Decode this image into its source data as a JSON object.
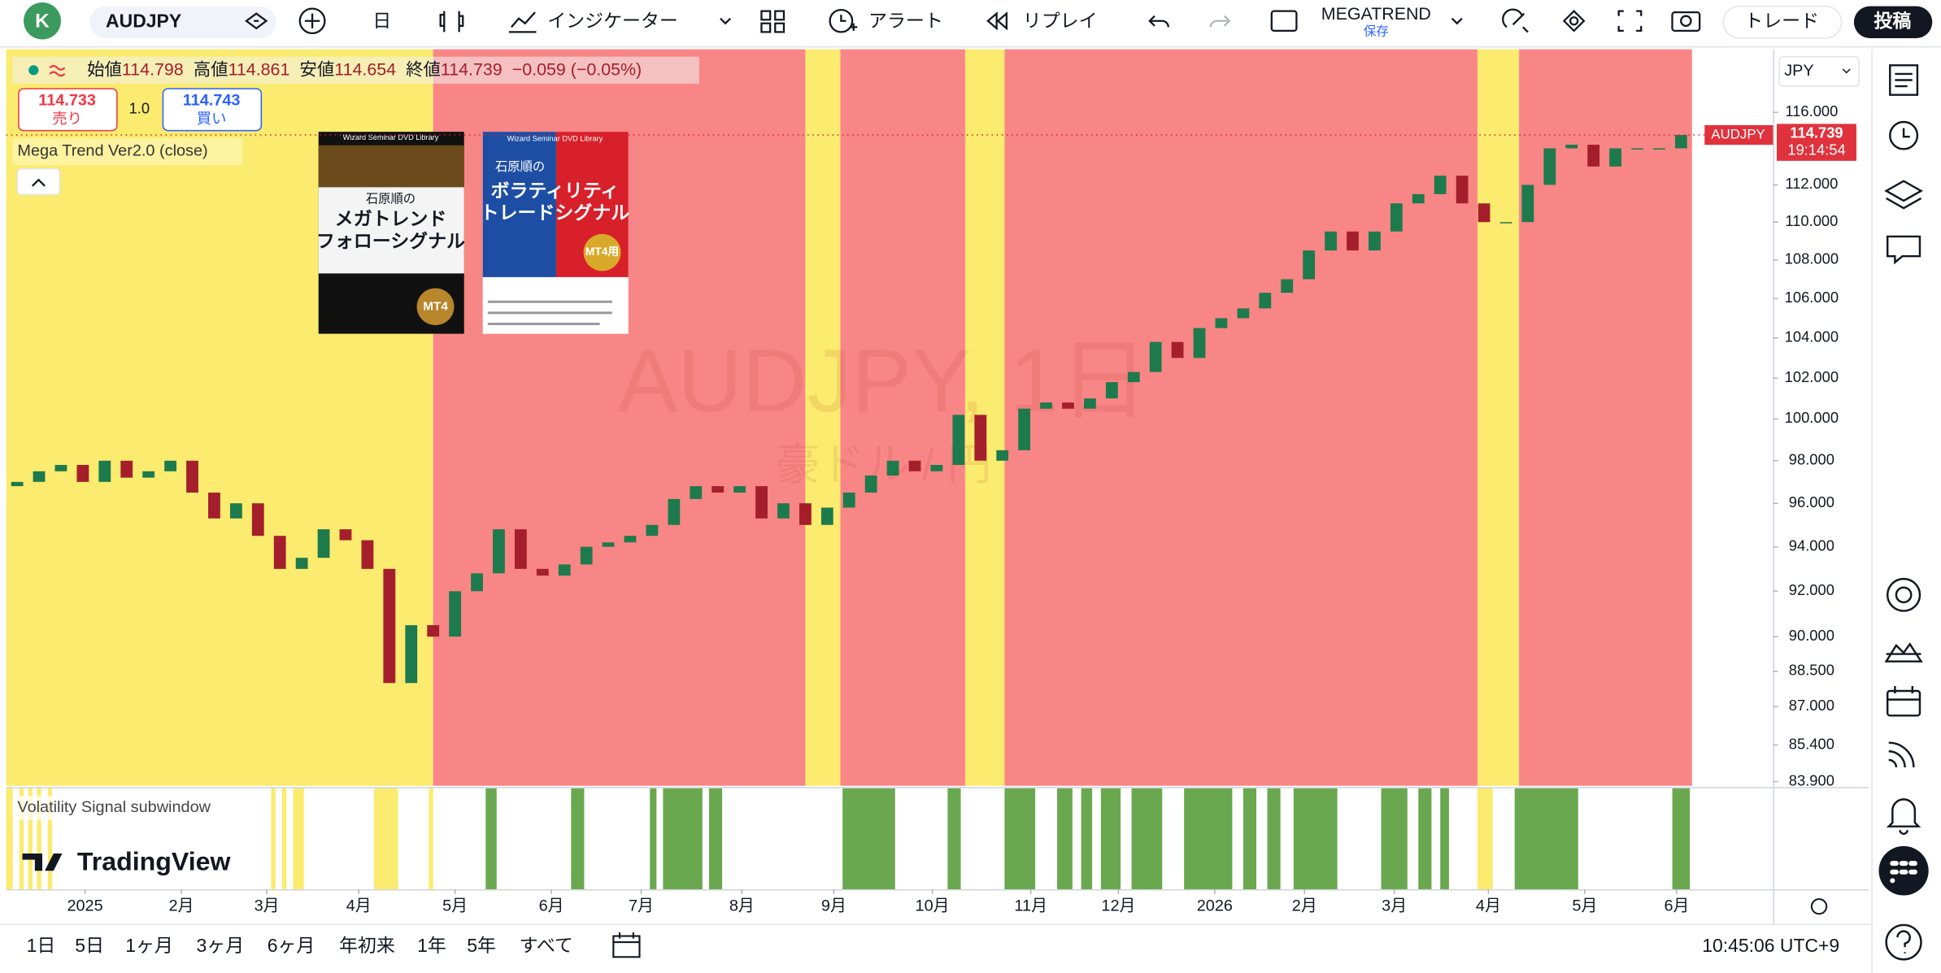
{
  "toolbar": {
    "avatar": "K",
    "symbol": "AUDJPY",
    "interval": "日",
    "indicators": "インジケーター",
    "alert": "アラート",
    "replay": "リプレイ",
    "layout_name": "MEGATREND",
    "layout_status": "保存",
    "trade": "トレード",
    "publish": "投稿"
  },
  "legend": {
    "open_label": "始値",
    "open": "114.798",
    "high_label": "高値",
    "high": "114.861",
    "low_label": "安値",
    "low": "114.654",
    "close_label": "終値",
    "close": "114.739",
    "change": "−0.059 (−0.05%)"
  },
  "order": {
    "sell_price": "114.733",
    "sell_label": "売り",
    "quantity": "1.0",
    "buy_price": "114.743",
    "buy_label": "買い"
  },
  "indicator": "Mega Trend Ver2.0 (close)",
  "subwindow_title": "Volatility Signal subwindow",
  "watermark": {
    "title": "AUDJPY, 1日",
    "subtitle": "豪ドル / 円"
  },
  "books": [
    {
      "series": "Wizard Seminar DVD Library",
      "author": "石原順の",
      "title_1": "メガトレンド",
      "title_2": "フォローシグナル",
      "badge": "MT4"
    },
    {
      "series": "Wizard Seminar DVD Library",
      "author": "石原順の",
      "title_1": "ボラティリティ",
      "title_2": "トレードシグナル",
      "badge": "MT4用"
    }
  ],
  "chart_data": {
    "type": "candlestick",
    "currency": "JPY",
    "symbol_label": "AUDJPY",
    "countdown": "19:14:54",
    "up_color": "#1d7a4c",
    "down_color": "#a41f2b",
    "log": true,
    "first_open": 96.8,
    "closes": [
      97.0,
      97.5,
      97.8,
      97.0,
      98.0,
      97.2,
      97.5,
      98.0,
      96.5,
      95.3,
      96.0,
      94.5,
      93.0,
      93.5,
      94.8,
      94.3,
      93.0,
      88.0,
      90.5,
      90.0,
      92.0,
      92.8,
      94.8,
      93.0,
      92.7,
      93.2,
      94.0,
      94.2,
      94.5,
      95.0,
      96.2,
      96.8,
      96.5,
      96.8,
      95.3,
      96.0,
      95.0,
      95.8,
      96.5,
      97.3,
      98.0,
      97.5,
      97.8,
      100.2,
      98.0,
      98.5,
      100.5,
      100.8,
      100.5,
      101.0,
      101.8,
      102.3,
      103.8,
      103.0,
      104.5,
      105.0,
      105.5,
      106.3,
      107.0,
      108.5,
      109.5,
      108.5,
      109.5,
      111.0,
      111.5,
      112.5,
      111.0,
      110.0,
      110.0,
      112.0,
      114.0,
      114.2,
      113.0,
      114.0,
      114.0,
      114.0,
      114.739
    ],
    "xlim": [
      0,
      80.7
    ],
    "xticks": [
      {
        "value": 3.6,
        "label": "2025"
      },
      {
        "value": 8.0,
        "label": "2月"
      },
      {
        "value": 11.9,
        "label": "3月"
      },
      {
        "value": 16.1,
        "label": "4月"
      },
      {
        "value": 20.5,
        "label": "5月"
      },
      {
        "value": 24.9,
        "label": "6月"
      },
      {
        "value": 29.0,
        "label": "7月"
      },
      {
        "value": 33.6,
        "label": "8月"
      },
      {
        "value": 37.8,
        "label": "9月"
      },
      {
        "value": 42.3,
        "label": "10月"
      },
      {
        "value": 46.8,
        "label": "11月"
      },
      {
        "value": 50.8,
        "label": "12月"
      },
      {
        "value": 55.2,
        "label": "2026"
      },
      {
        "value": 59.3,
        "label": "2月"
      },
      {
        "value": 63.4,
        "label": "3月"
      },
      {
        "value": 67.7,
        "label": "4月"
      },
      {
        "value": 72.1,
        "label": "5月"
      },
      {
        "value": 76.3,
        "label": "6月"
      }
    ],
    "ylim": [
      83.73,
      119.6
    ],
    "yticks": [
      {
        "value": 83.9,
        "label": "83.900"
      },
      {
        "value": 85.4,
        "label": "85.400"
      },
      {
        "value": 87,
        "label": "87.000"
      },
      {
        "value": 88.5,
        "label": "88.500"
      },
      {
        "value": 90,
        "label": "90.000"
      },
      {
        "value": 92,
        "label": "92.000"
      },
      {
        "value": 94,
        "label": "94.000"
      },
      {
        "value": 96,
        "label": "96.000"
      },
      {
        "value": 98,
        "label": "98.000"
      },
      {
        "value": 100,
        "label": "100.000"
      },
      {
        "value": 102,
        "label": "102.000"
      },
      {
        "value": 104,
        "label": "104.000"
      },
      {
        "value": 106,
        "label": "106.000"
      },
      {
        "value": 108,
        "label": "108.000"
      },
      {
        "value": 110,
        "label": "110.000"
      },
      {
        "value": 112,
        "label": "112.000"
      },
      {
        "value": 116,
        "label": "116.000"
      }
    ],
    "bands": [
      {
        "start": 0,
        "end": 19.5,
        "color": "#fbeb6e"
      },
      {
        "start": 19.5,
        "end": 36.5,
        "color": "#f98686"
      },
      {
        "start": 36.5,
        "end": 38.1,
        "color": "#fbeb6e"
      },
      {
        "start": 38.1,
        "end": 43.8,
        "color": "#f98686"
      },
      {
        "start": 43.8,
        "end": 45.6,
        "color": "#fbeb6e"
      },
      {
        "start": 45.6,
        "end": 67.2,
        "color": "#f98686"
      },
      {
        "start": 67.2,
        "end": 69.1,
        "color": "#fbeb6e"
      },
      {
        "start": 69.1,
        "end": 77,
        "color": "#f98686"
      }
    ],
    "signals": [
      {
        "color": "#6aa84f",
        "spans": [
          [
            21.9,
            22.4
          ],
          [
            25.8,
            26.4
          ],
          [
            29.4,
            29.7
          ],
          [
            30.0,
            31.8
          ],
          [
            32.1,
            32.7
          ],
          [
            38.2,
            40.6
          ],
          [
            43.0,
            43.6
          ],
          [
            45.6,
            47.0
          ],
          [
            48.0,
            48.7
          ],
          [
            49.1,
            49.6
          ],
          [
            50.0,
            50.9
          ],
          [
            51.4,
            52.8
          ],
          [
            53.8,
            56.0
          ],
          [
            56.5,
            57.1
          ],
          [
            57.6,
            58.2
          ],
          [
            58.8,
            60.8
          ],
          [
            62.8,
            64.0
          ],
          [
            64.5,
            65.1
          ],
          [
            65.5,
            65.9
          ],
          [
            68.9,
            71.8
          ],
          [
            76.1,
            76.9
          ]
        ]
      },
      {
        "color": "#fbeb6e",
        "spans": [
          [
            0.0,
            0.3
          ],
          [
            0.6,
            0.8
          ],
          [
            1.0,
            1.2
          ],
          [
            1.4,
            1.6
          ],
          [
            1.9,
            2.1
          ],
          [
            12.1,
            12.3
          ],
          [
            12.6,
            12.8
          ],
          [
            13.1,
            13.6
          ],
          [
            16.8,
            17.9
          ],
          [
            19.3,
            19.5
          ],
          [
            67.2,
            67.9
          ]
        ]
      }
    ]
  },
  "range_buttons": [
    "1日",
    "5日",
    "1ヶ月",
    "3ヶ月",
    "6ヶ月",
    "年初来",
    "1年",
    "5年",
    "すべて"
  ],
  "clock": "10:45:06 UTC+9",
  "brand": "TradingView"
}
